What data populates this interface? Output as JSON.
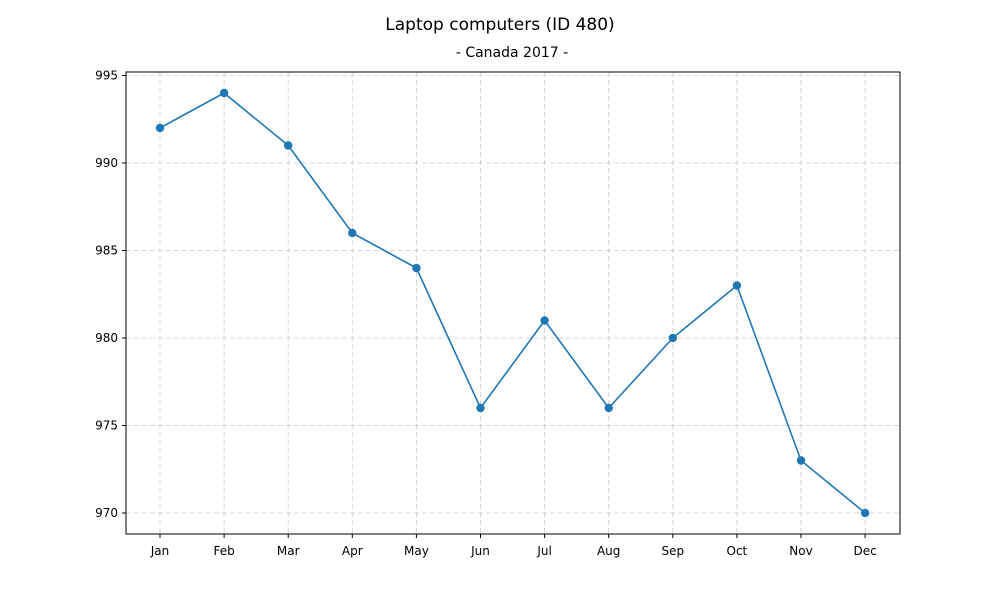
{
  "chart_data": {
    "type": "line",
    "title": "Laptop computers (ID 480)",
    "subtitle": "- Canada 2017 -",
    "categories": [
      "Jan",
      "Feb",
      "Mar",
      "Apr",
      "May",
      "Jun",
      "Jul",
      "Aug",
      "Sep",
      "Oct",
      "Nov",
      "Dec"
    ],
    "series": [
      {
        "values": [
          992,
          994,
          991,
          986,
          984,
          976,
          981,
          976,
          980,
          983,
          973,
          970
        ],
        "color": "#1f77b4"
      }
    ],
    "yticks": [
      970,
      975,
      980,
      985,
      990,
      995
    ],
    "ylim": [
      968.8,
      995.2
    ],
    "grid": true,
    "grid_color": "#cccccc",
    "legend": false
  }
}
